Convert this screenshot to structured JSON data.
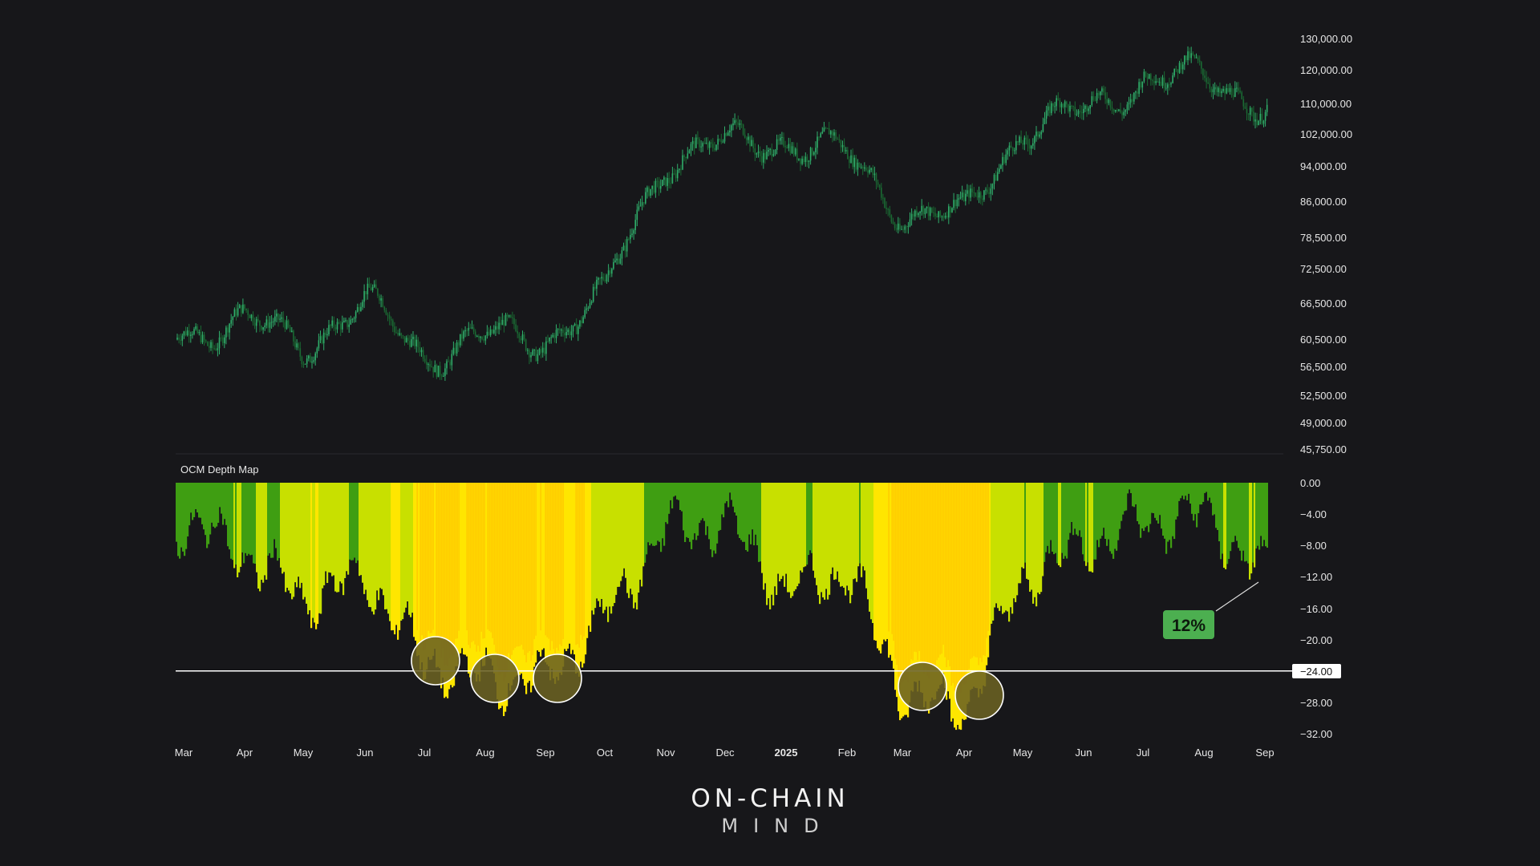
{
  "colors": {
    "background": "#17171a",
    "candle_up": "#2fae6a",
    "candle_down": "#1a6a33",
    "depth_shallow": "#3f9e12",
    "depth_mid": "#c8e000",
    "depth_deep": "#ffe600",
    "depth_core": "#ff9a00",
    "highlight_circle": "#6b6222",
    "badge": "#4caf50",
    "threshold_line": "#ffffff"
  },
  "price_axis": {
    "scale": "log",
    "ticks": [
      "130,000.00",
      "120,000.00",
      "110,000.00",
      "102,000.00",
      "94,000.00",
      "86,000.00",
      "78,500.00",
      "72,500.00",
      "66,500.00",
      "60,500.00",
      "56,500.00",
      "52,500.00",
      "49,000.00",
      "45,750.00"
    ]
  },
  "depth_axis": {
    "ticks": [
      "0.00",
      "−4.00",
      "−8.00",
      "−12.00",
      "−16.00",
      "−20.00",
      "−28.00",
      "−32.00"
    ]
  },
  "time_axis": {
    "labels": [
      "Mar",
      "Apr",
      "May",
      "Jun",
      "Jul",
      "Aug",
      "Sep",
      "Oct",
      "Nov",
      "Dec",
      "2025",
      "Feb",
      "Mar",
      "Apr",
      "May",
      "Jun",
      "Jul",
      "Aug",
      "Sep"
    ],
    "bold_label": "2025"
  },
  "indicator": {
    "title": "OCM Depth Map",
    "threshold_label": "−24.00",
    "badge_label": "12%"
  },
  "brand": {
    "line1": "ON-CHAIN",
    "line2": "MIND"
  },
  "chart_data": [
    {
      "type": "line",
      "title": "",
      "xlabel": "",
      "ylabel": "",
      "y_scale": "log",
      "ylim": [
        45750,
        130000
      ],
      "x": [
        "2024-03",
        "2024-04",
        "2024-05",
        "2024-06",
        "2024-07",
        "2024-08",
        "2024-09",
        "2024-10",
        "2024-11",
        "2024-12",
        "2025-01",
        "2025-02",
        "2025-03",
        "2025-04",
        "2025-05",
        "2025-06",
        "2025-07",
        "2025-08",
        "2025-09"
      ],
      "series": [
        {
          "values": [
            62000,
            63000,
            60000,
            66000,
            58500,
            60500,
            61000,
            67000,
            96000,
            99000,
            101000,
            96000,
            84000,
            82000,
            104000,
            107000,
            118000,
            117000,
            111000
          ]
        }
      ]
    },
    {
      "type": "area",
      "title": "OCM Depth Map",
      "xlabel": "",
      "ylabel": "",
      "ylim": [
        -32,
        0
      ],
      "threshold": -24,
      "annotation": "12%",
      "x": [
        "2024-03",
        "2024-04",
        "2024-05",
        "2024-06",
        "2024-07",
        "2024-08",
        "2024-09",
        "2024-10",
        "2024-11",
        "2024-12",
        "2025-01",
        "2025-02",
        "2025-03",
        "2025-04",
        "2025-05",
        "2025-06",
        "2025-07",
        "2025-08",
        "2025-09"
      ],
      "series": [
        {
          "values": [
            -5,
            -9,
            -15,
            -12,
            -23,
            -25,
            -25,
            -17,
            -6,
            -5,
            -14,
            -11,
            -27,
            -29,
            -12,
            -8,
            -5,
            -4,
            -12
          ]
        }
      ]
    }
  ]
}
